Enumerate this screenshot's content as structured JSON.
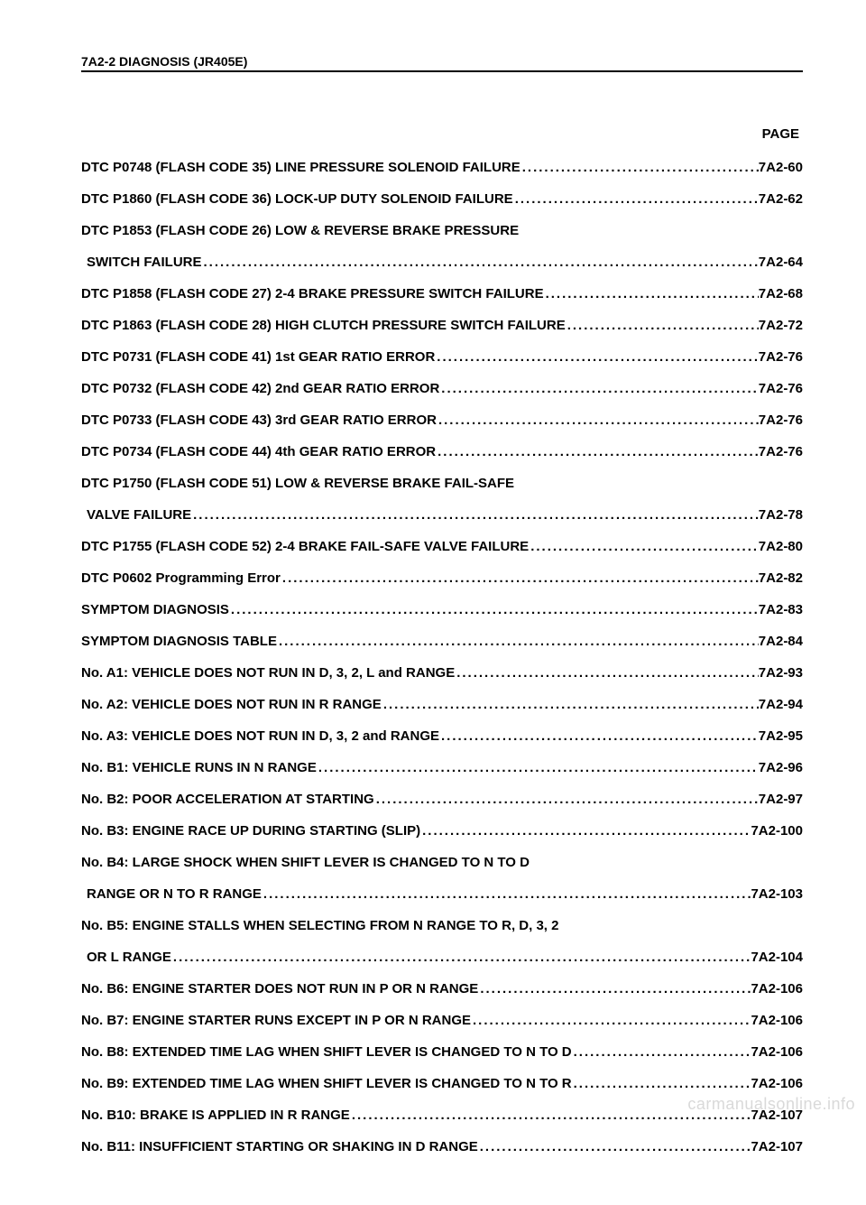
{
  "header": {
    "label": "7A2-2  DIAGNOSIS (JR405E)"
  },
  "page_label": "PAGE",
  "toc": [
    {
      "title": "DTC P0748 (FLASH CODE 35) LINE PRESSURE SOLENOID FAILURE",
      "page": "7A2-60",
      "indent": false
    },
    {
      "title": "DTC P1860 (FLASH CODE 36) LOCK-UP DUTY SOLENOID FAILURE",
      "page": "7A2-62",
      "indent": false
    },
    {
      "title": "DTC P1853 (FLASH CODE 26) LOW & REVERSE BRAKE PRESSURE",
      "page": null,
      "indent": false
    },
    {
      "title": "SWITCH FAILURE",
      "page": "7A2-64",
      "indent": true
    },
    {
      "title": "DTC P1858 (FLASH CODE 27) 2-4 BRAKE PRESSURE SWITCH FAILURE",
      "page": "7A2-68",
      "indent": false
    },
    {
      "title": "DTC P1863 (FLASH CODE 28) HIGH CLUTCH PRESSURE SWITCH FAILURE",
      "page": "7A2-72",
      "indent": false
    },
    {
      "title": "DTC P0731 (FLASH CODE 41) 1st GEAR RATIO ERROR",
      "page": "7A2-76",
      "indent": false
    },
    {
      "title": "DTC P0732 (FLASH CODE 42) 2nd GEAR RATIO ERROR",
      "page": "7A2-76",
      "indent": false
    },
    {
      "title": "DTC P0733 (FLASH CODE 43) 3rd GEAR RATIO ERROR",
      "page": "7A2-76",
      "indent": false
    },
    {
      "title": "DTC P0734 (FLASH CODE 44) 4th GEAR RATIO ERROR",
      "page": "7A2-76",
      "indent": false
    },
    {
      "title": "DTC P1750 (FLASH CODE 51) LOW & REVERSE BRAKE FAIL-SAFE",
      "page": null,
      "indent": false
    },
    {
      "title": "VALVE FAILURE",
      "page": "7A2-78",
      "indent": true
    },
    {
      "title": "DTC P1755 (FLASH CODE 52) 2-4 BRAKE FAIL-SAFE VALVE FAILURE",
      "page": "7A2-80",
      "indent": false
    },
    {
      "title": "DTC P0602 Programming Error",
      "page": " 7A2-82",
      "indent": false
    },
    {
      "title": "SYMPTOM DIAGNOSIS",
      "page": "7A2-83",
      "indent": false
    },
    {
      "title": "SYMPTOM DIAGNOSIS TABLE",
      "page": "7A2-84",
      "indent": false
    },
    {
      "title": "No. A1: VEHICLE DOES NOT RUN IN D, 3, 2, L and RANGE",
      "page": "7A2-93",
      "indent": false
    },
    {
      "title": "No. A2: VEHICLE DOES NOT RUN IN R RANGE",
      "page": "7A2-94",
      "indent": false
    },
    {
      "title": "No. A3: VEHICLE DOES NOT RUN IN D, 3, 2 and RANGE",
      "page": "7A2-95",
      "indent": false
    },
    {
      "title": "No. B1: VEHICLE RUNS IN N RANGE",
      "page": "7A2-96",
      "indent": false
    },
    {
      "title": "No. B2: POOR ACCELERATION AT STARTING",
      "page": "7A2-97",
      "indent": false
    },
    {
      "title": "No. B3: ENGINE RACE UP DURING STARTING (SLIP)",
      "page": "7A2-100",
      "indent": false
    },
    {
      "title": "No. B4: LARGE SHOCK WHEN SHIFT LEVER IS CHANGED TO N TO D",
      "page": null,
      "indent": false
    },
    {
      "title": "RANGE OR N TO R RANGE",
      "page": "7A2-103",
      "indent": true
    },
    {
      "title": "No. B5: ENGINE STALLS WHEN SELECTING FROM N RANGE TO R, D, 3, 2",
      "page": null,
      "indent": false
    },
    {
      "title": "OR L RANGE",
      "page": "7A2-104",
      "indent": true
    },
    {
      "title": "No. B6: ENGINE STARTER DOES NOT RUN IN P OR N RANGE",
      "page": "7A2-106",
      "indent": false
    },
    {
      "title": "No. B7: ENGINE STARTER RUNS EXCEPT IN P OR N RANGE",
      "page": "7A2-106",
      "indent": false
    },
    {
      "title": "No. B8: EXTENDED TIME LAG WHEN SHIFT LEVER IS CHANGED TO N TO D",
      "page": "7A2-106",
      "indent": false
    },
    {
      "title": "No. B9: EXTENDED TIME LAG WHEN SHIFT LEVER IS CHANGED TO N TO R",
      "page": "7A2-106",
      "indent": false
    },
    {
      "title": "No. B10: BRAKE IS APPLIED IN R RANGE",
      "page": "7A2-107",
      "indent": false
    },
    {
      "title": "No. B11: INSUFFICIENT STARTING OR SHAKING IN D RANGE",
      "page": "7A2-107",
      "indent": false
    }
  ],
  "watermark": "carmanualsonline.info"
}
